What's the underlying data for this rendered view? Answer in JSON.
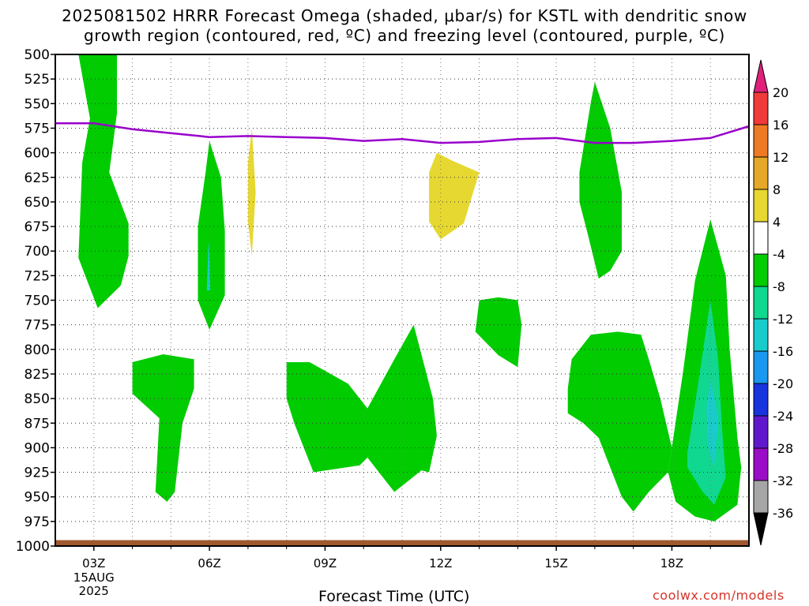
{
  "chart_data": {
    "type": "heatmap",
    "title_line1": "2025081502 HRRR Forecast Omega (shaded, μbar/s) for KSTL with dendritic snow",
    "title_line2": "growth region (contoured, red, ºC) and freezing level (contoured, purple, ºC)",
    "xlabel": "Forecast Time (UTC)",
    "credit": "coolwx.com/models",
    "x_ticks": [
      {
        "hour": 3,
        "label": "03Z",
        "sub": [
          "15AUG",
          "2025"
        ]
      },
      {
        "hour": 6,
        "label": "06Z"
      },
      {
        "hour": 9,
        "label": "09Z"
      },
      {
        "hour": 12,
        "label": "12Z"
      },
      {
        "hour": 15,
        "label": "15Z"
      },
      {
        "hour": 18,
        "label": "18Z"
      }
    ],
    "xlim_hours": [
      2,
      20
    ],
    "y_axis": "pressure (mb), inverted",
    "ylim": [
      1000,
      500
    ],
    "y_ticks": [
      500,
      525,
      550,
      575,
      600,
      625,
      650,
      675,
      700,
      725,
      750,
      775,
      800,
      825,
      850,
      875,
      900,
      925,
      950,
      975,
      1000
    ],
    "colorbar": {
      "labels": [
        "20",
        "16",
        "12",
        "8",
        "4",
        "-4",
        "-8",
        "-12",
        "-16",
        "-20",
        "-24",
        "-28",
        "-32",
        "-36"
      ],
      "top_arrow_color": "#e0207a",
      "bottom_arrow_color": "#000000",
      "colors": [
        "#f03a3a",
        "#ee7a25",
        "#e6a828",
        "#e6d830",
        "#ffffff",
        "#00cc00",
        "#10d890",
        "#18cccc",
        "#1898ee",
        "#1834dd",
        "#6018cc",
        "#9a0cc6",
        "#a6a6a6"
      ]
    },
    "freezing_level": {
      "color": "#9900cc",
      "x": [
        2.0,
        3.0,
        4.0,
        5.0,
        6.0,
        7.0,
        8.0,
        9.0,
        10.0,
        11.0,
        12.0,
        13.0,
        14.0,
        15.0,
        16.0,
        17.0,
        18.0,
        19.0,
        20.0
      ],
      "y": [
        570,
        570,
        576,
        580,
        584,
        583,
        584,
        585,
        588,
        586,
        590,
        589,
        586,
        585,
        590,
        590,
        588,
        585,
        573
      ]
    },
    "omega_regions": [
      {
        "color": "#00cc00",
        "points": [
          [
            2.6,
            500
          ],
          [
            3.6,
            500
          ],
          [
            3.6,
            560
          ],
          [
            3.4,
            620
          ],
          [
            3.9,
            672
          ],
          [
            3.9,
            705
          ],
          [
            3.7,
            735
          ],
          [
            3.1,
            758
          ],
          [
            2.6,
            707
          ],
          [
            2.7,
            610
          ],
          [
            2.9,
            565
          ]
        ]
      },
      {
        "color": "#00cc00",
        "points": [
          [
            5.7,
            675
          ],
          [
            5.9,
            620
          ],
          [
            6.0,
            588
          ],
          [
            6.3,
            625
          ],
          [
            6.4,
            680
          ],
          [
            6.4,
            745
          ],
          [
            6.0,
            780
          ],
          [
            5.7,
            750
          ]
        ]
      },
      {
        "color": "#18cccc",
        "points": [
          [
            5.93,
            740
          ],
          [
            5.98,
            690
          ],
          [
            6.0,
            700
          ],
          [
            6.02,
            740
          ]
        ]
      },
      {
        "color": "#e6d830",
        "points": [
          [
            7.0,
            610
          ],
          [
            7.1,
            575
          ],
          [
            7.2,
            640
          ],
          [
            7.1,
            705
          ],
          [
            7.0,
            670
          ]
        ]
      },
      {
        "color": "#e6d830",
        "points": [
          [
            11.7,
            620
          ],
          [
            11.9,
            600
          ],
          [
            12.3,
            608
          ],
          [
            13.0,
            620
          ],
          [
            12.6,
            672
          ],
          [
            12.0,
            688
          ],
          [
            11.7,
            670
          ]
        ]
      },
      {
        "color": "#00cc00",
        "points": [
          [
            4.0,
            813
          ],
          [
            4.8,
            805
          ],
          [
            5.6,
            810
          ],
          [
            5.6,
            840
          ],
          [
            5.3,
            875
          ],
          [
            5.1,
            945
          ],
          [
            4.9,
            955
          ],
          [
            4.6,
            945
          ],
          [
            4.7,
            870
          ],
          [
            4.0,
            845
          ]
        ]
      },
      {
        "color": "#00cc00",
        "points": [
          [
            8.0,
            813
          ],
          [
            8.6,
            813
          ],
          [
            9.6,
            835
          ],
          [
            10.1,
            860
          ],
          [
            10.8,
            810
          ],
          [
            11.3,
            775
          ],
          [
            11.8,
            850
          ],
          [
            11.9,
            888
          ],
          [
            11.7,
            925
          ],
          [
            11.5,
            923
          ],
          [
            10.8,
            945
          ],
          [
            10.1,
            910
          ],
          [
            9.9,
            918
          ],
          [
            8.7,
            925
          ],
          [
            8.2,
            875
          ],
          [
            8.0,
            850
          ]
        ]
      },
      {
        "color": "#00cc00",
        "points": [
          [
            13.0,
            750
          ],
          [
            13.5,
            747
          ],
          [
            14.0,
            750
          ],
          [
            14.1,
            775
          ],
          [
            14.0,
            818
          ],
          [
            13.5,
            806
          ],
          [
            12.9,
            782
          ]
        ]
      },
      {
        "color": "#00cc00",
        "points": [
          [
            15.6,
            620
          ],
          [
            15.9,
            548
          ],
          [
            16.0,
            528
          ],
          [
            16.4,
            575
          ],
          [
            16.7,
            640
          ],
          [
            16.7,
            700
          ],
          [
            16.4,
            720
          ],
          [
            16.1,
            728
          ],
          [
            15.8,
            680
          ],
          [
            15.6,
            650
          ]
        ]
      },
      {
        "color": "#00cc00",
        "points": [
          [
            15.3,
            840
          ],
          [
            15.4,
            810
          ],
          [
            15.9,
            785
          ],
          [
            16.6,
            782
          ],
          [
            17.2,
            785
          ],
          [
            17.4,
            810
          ],
          [
            17.7,
            850
          ],
          [
            18.0,
            900
          ],
          [
            17.9,
            925
          ],
          [
            17.4,
            945
          ],
          [
            17.0,
            965
          ],
          [
            16.7,
            950
          ],
          [
            16.1,
            890
          ],
          [
            15.7,
            875
          ],
          [
            15.3,
            865
          ]
        ]
      },
      {
        "color": "#00cc00",
        "points": [
          [
            18.0,
            900
          ],
          [
            18.3,
            820
          ],
          [
            18.6,
            730
          ],
          [
            19.0,
            668
          ],
          [
            19.4,
            725
          ],
          [
            19.5,
            800
          ],
          [
            19.7,
            890
          ],
          [
            19.8,
            920
          ],
          [
            19.7,
            958
          ],
          [
            19.1,
            975
          ],
          [
            18.6,
            970
          ],
          [
            18.1,
            955
          ],
          [
            17.9,
            925
          ]
        ]
      },
      {
        "color": "#10d890",
        "points": [
          [
            18.4,
            905
          ],
          [
            18.7,
            830
          ],
          [
            19.0,
            750
          ],
          [
            19.2,
            810
          ],
          [
            19.3,
            880
          ],
          [
            19.4,
            930
          ],
          [
            19.1,
            958
          ],
          [
            18.8,
            945
          ],
          [
            18.4,
            920
          ]
        ]
      },
      {
        "color": "#18cccc",
        "points": [
          [
            18.9,
            860
          ],
          [
            19.0,
            830
          ],
          [
            19.2,
            870
          ],
          [
            19.1,
            920
          ],
          [
            18.95,
            900
          ]
        ]
      },
      {
        "color": "#e6d830",
        "points": [
          [
            19.97,
            830
          ],
          [
            20.0,
            805
          ],
          [
            20.0,
            855
          ],
          [
            19.97,
            840
          ]
        ]
      }
    ],
    "terrain": {
      "color": "#a0582e",
      "top_mb": 994
    }
  }
}
